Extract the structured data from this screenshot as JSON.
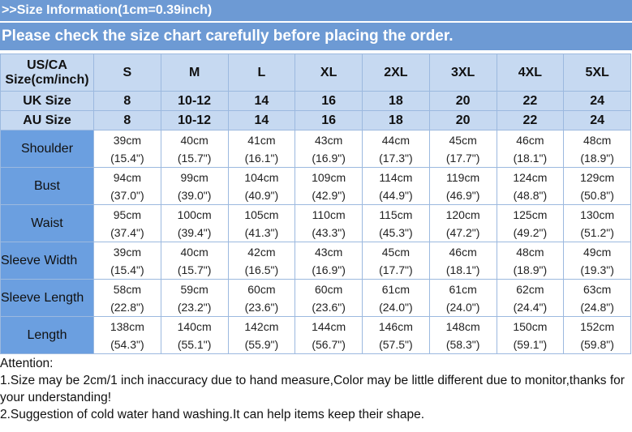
{
  "header": {
    "title": ">>Size Information(1cm=0.39inch)",
    "subtitle": "Please check the size chart carefully before placing the order."
  },
  "table": {
    "corner": [
      "US/CA",
      "Size(cm/inch)"
    ],
    "sizes": [
      "S",
      "M",
      "L",
      "XL",
      "2XL",
      "3XL",
      "4XL",
      "5XL"
    ],
    "uk": {
      "label": "UK Size",
      "values": [
        "8",
        "10-12",
        "14",
        "16",
        "18",
        "20",
        "22",
        "24"
      ]
    },
    "au": {
      "label": "AU Size",
      "values": [
        "8",
        "10-12",
        "14",
        "16",
        "18",
        "20",
        "22",
        "24"
      ]
    },
    "rows": [
      {
        "label": "Shoulder",
        "cells": [
          [
            "39cm",
            "(15.4\")"
          ],
          [
            "40cm",
            "(15.7\")"
          ],
          [
            "41cm",
            "(16.1\")"
          ],
          [
            "43cm",
            "(16.9\")"
          ],
          [
            "44cm",
            "(17.3\")"
          ],
          [
            "45cm",
            "(17.7\")"
          ],
          [
            "46cm",
            "(18.1\")"
          ],
          [
            "48cm",
            "(18.9\")"
          ]
        ]
      },
      {
        "label": "Bust",
        "cells": [
          [
            "94cm",
            "(37.0\")"
          ],
          [
            "99cm",
            "(39.0\")"
          ],
          [
            "104cm",
            "(40.9\")"
          ],
          [
            "109cm",
            "(42.9\")"
          ],
          [
            "114cm",
            "(44.9\")"
          ],
          [
            "119cm",
            "(46.9\")"
          ],
          [
            "124cm",
            "(48.8\")"
          ],
          [
            "129cm",
            "(50.8\")"
          ]
        ]
      },
      {
        "label": "Waist",
        "cells": [
          [
            "95cm",
            "(37.4\")"
          ],
          [
            "100cm",
            "(39.4\")"
          ],
          [
            "105cm",
            "(41.3\")"
          ],
          [
            "110cm",
            "(43.3\")"
          ],
          [
            "115cm",
            "(45.3\")"
          ],
          [
            "120cm",
            "(47.2\")"
          ],
          [
            "125cm",
            "(49.2\")"
          ],
          [
            "130cm",
            "(51.2\")"
          ]
        ]
      },
      {
        "label": "Sleeve Width",
        "cells": [
          [
            "39cm",
            "(15.4\")"
          ],
          [
            "40cm",
            "(15.7\")"
          ],
          [
            "42cm",
            "(16.5\")"
          ],
          [
            "43cm",
            "(16.9\")"
          ],
          [
            "45cm",
            "(17.7\")"
          ],
          [
            "46cm",
            "(18.1\")"
          ],
          [
            "48cm",
            "(18.9\")"
          ],
          [
            "49cm",
            "(19.3\")"
          ]
        ]
      },
      {
        "label": "Sleeve Length",
        "cells": [
          [
            "58cm",
            "(22.8\")"
          ],
          [
            "59cm",
            "(23.2\")"
          ],
          [
            "60cm",
            "(23.6\")"
          ],
          [
            "60cm",
            "(23.6\")"
          ],
          [
            "61cm",
            "(24.0\")"
          ],
          [
            "61cm",
            "(24.0\")"
          ],
          [
            "62cm",
            "(24.4\")"
          ],
          [
            "63cm",
            "(24.8\")"
          ]
        ]
      },
      {
        "label": "Length",
        "cells": [
          [
            "138cm",
            "(54.3\")"
          ],
          [
            "140cm",
            "(55.1\")"
          ],
          [
            "142cm",
            "(55.9\")"
          ],
          [
            "144cm",
            "(56.7\")"
          ],
          [
            "146cm",
            "(57.5\")"
          ],
          [
            "148cm",
            "(58.3\")"
          ],
          [
            "150cm",
            "(59.1\")"
          ],
          [
            "152cm",
            "(59.8\")"
          ]
        ]
      }
    ]
  },
  "notes": {
    "heading": "Attention:",
    "items": [
      "1.Size may be 2cm/1 inch inaccuracy due to hand measure,Color may be little different due to monitor,thanks for your understanding!",
      "2.Suggestion of cold water hand washing.It can help items keep their shape."
    ]
  }
}
